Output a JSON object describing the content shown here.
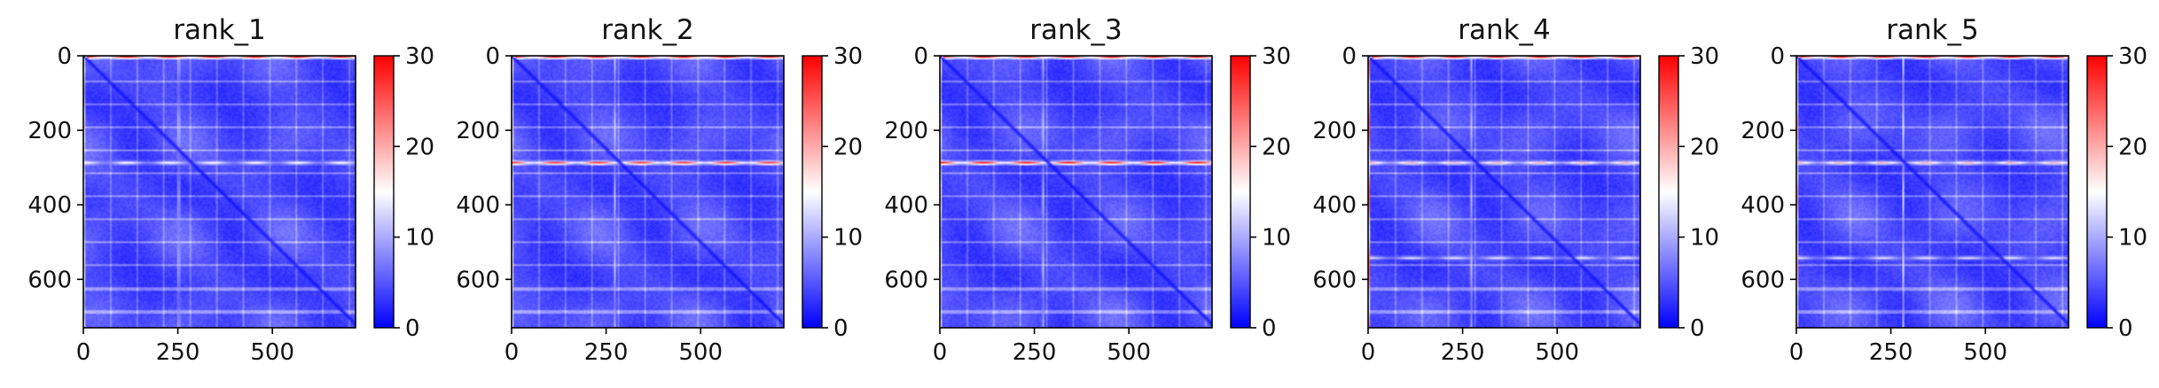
{
  "chart_data": [
    {
      "type": "heatmap",
      "title": "rank_1",
      "xticks": [
        0,
        250,
        500
      ],
      "yticks": [
        0,
        200,
        400,
        600
      ],
      "xlim": [
        0,
        720
      ],
      "ylim": [
        730,
        0
      ],
      "colorbar": {
        "ticks": [
          0,
          10,
          20,
          30
        ],
        "range": [
          0,
          30
        ],
        "colormap": "bwr"
      },
      "hot_rows": [
        {
          "row": 0,
          "level": 30
        },
        {
          "row": 285,
          "level": 16
        }
      ],
      "hot_cols": [
        {
          "col": 0,
          "level": 17
        },
        {
          "col": 250,
          "level": 14
        }
      ],
      "diagonal_level": 1
    },
    {
      "type": "heatmap",
      "title": "rank_2",
      "xticks": [
        0,
        250,
        500
      ],
      "yticks": [
        0,
        200,
        400,
        600
      ],
      "xlim": [
        0,
        720
      ],
      "ylim": [
        730,
        0
      ],
      "colorbar": {
        "ticks": [
          0,
          10,
          20,
          30
        ],
        "range": [
          0,
          30
        ],
        "colormap": "bwr"
      },
      "hot_rows": [
        {
          "row": 0,
          "level": 30
        },
        {
          "row": 285,
          "level": 28
        }
      ],
      "hot_cols": [
        {
          "col": 0,
          "level": 17
        },
        {
          "col": 270,
          "level": 14
        }
      ],
      "diagonal_level": 1
    },
    {
      "type": "heatmap",
      "title": "rank_3",
      "xticks": [
        0,
        250,
        500
      ],
      "yticks": [
        0,
        200,
        400,
        600
      ],
      "xlim": [
        0,
        720
      ],
      "ylim": [
        730,
        0
      ],
      "colorbar": {
        "ticks": [
          0,
          10,
          20,
          30
        ],
        "range": [
          0,
          30
        ],
        "colormap": "bwr"
      },
      "hot_rows": [
        {
          "row": 0,
          "level": 30
        },
        {
          "row": 285,
          "level": 30
        }
      ],
      "hot_cols": [
        {
          "col": 0,
          "level": 17
        },
        {
          "col": 270,
          "level": 14
        }
      ],
      "diagonal_level": 1
    },
    {
      "type": "heatmap",
      "title": "rank_4",
      "xticks": [
        0,
        250,
        500
      ],
      "yticks": [
        0,
        200,
        400,
        600
      ],
      "xlim": [
        0,
        720
      ],
      "ylim": [
        730,
        0
      ],
      "colorbar": {
        "ticks": [
          0,
          10,
          20,
          30
        ],
        "range": [
          0,
          30
        ],
        "colormap": "bwr"
      },
      "hot_rows": [
        {
          "row": 0,
          "level": 30
        },
        {
          "row": 285,
          "level": 20
        },
        {
          "row": 540,
          "level": 14
        }
      ],
      "hot_cols": [
        {
          "col": 0,
          "level": 25
        },
        {
          "col": 270,
          "level": 14
        }
      ],
      "diagonal_level": 1
    },
    {
      "type": "heatmap",
      "title": "rank_5",
      "xticks": [
        0,
        250,
        500
      ],
      "yticks": [
        0,
        200,
        400,
        600
      ],
      "xlim": [
        0,
        720
      ],
      "ylim": [
        730,
        0
      ],
      "colorbar": {
        "ticks": [
          0,
          10,
          20,
          30
        ],
        "range": [
          0,
          30
        ],
        "colormap": "bwr"
      },
      "hot_rows": [
        {
          "row": 0,
          "level": 30
        },
        {
          "row": 285,
          "level": 20
        },
        {
          "row": 540,
          "level": 14
        }
      ],
      "hot_cols": [
        {
          "col": 0,
          "level": 20
        },
        {
          "col": 280,
          "level": 14
        }
      ],
      "diagonal_level": 1
    }
  ],
  "colors": {
    "low": "#0000ff",
    "mid": "#ffffff",
    "high": "#ff0000",
    "axis": "#000000"
  }
}
